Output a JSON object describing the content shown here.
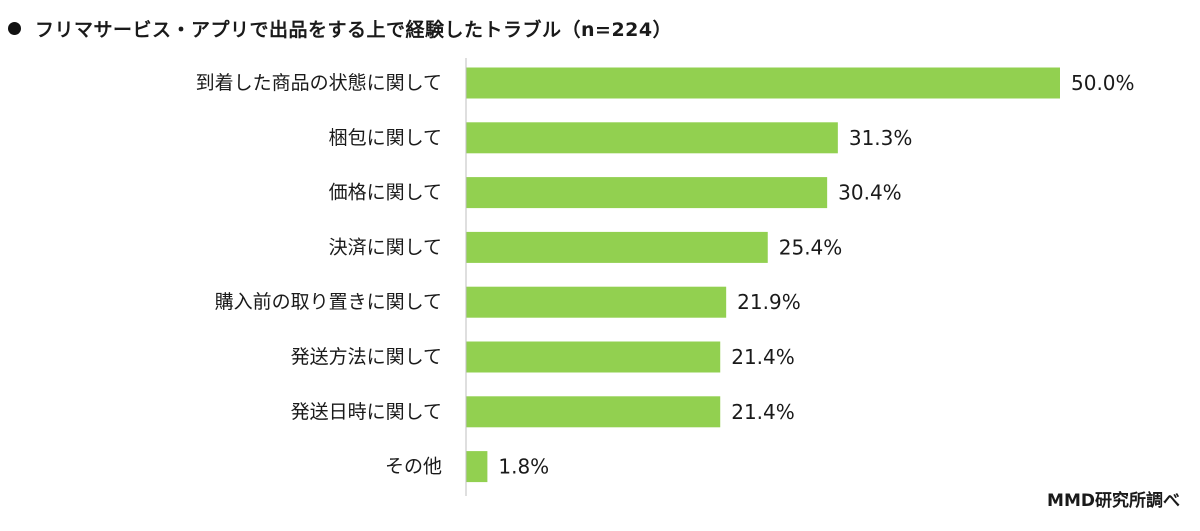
{
  "header": {
    "title": "フリマサービス・アプリで出品をする上で経験したトラブル（n=224）"
  },
  "footer": {
    "source": "MMD研究所調べ"
  },
  "colors": {
    "bar": "#92d050",
    "axis": "#bfbfbf",
    "text": "#1a1a1a"
  },
  "chart_data": {
    "type": "bar",
    "orientation": "horizontal",
    "categories": [
      "到着した商品の状態に関して",
      "梱包に関して",
      "価格に関して",
      "決済に関して",
      "購入前の取り置きに関して",
      "発送方法に関して",
      "発送日時に関して",
      "その他"
    ],
    "values": [
      50.0,
      31.3,
      30.4,
      25.4,
      21.9,
      21.4,
      21.4,
      1.8
    ],
    "value_labels": [
      "50.0%",
      "31.3%",
      "30.4%",
      "25.4%",
      "21.9%",
      "21.4%",
      "21.4%",
      "1.8%"
    ],
    "unit": "%",
    "xlim": [
      0,
      50
    ],
    "grid": false,
    "legend": "none"
  }
}
